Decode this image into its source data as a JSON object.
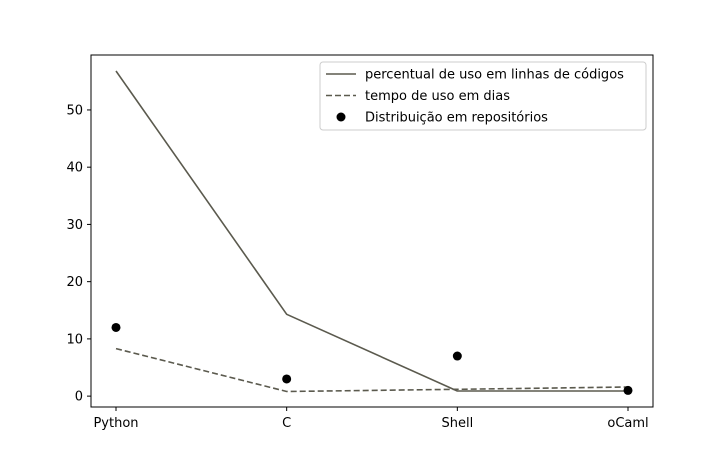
{
  "chart_data": {
    "type": "line",
    "categories": [
      "Python",
      "C",
      "Shell",
      "oCaml"
    ],
    "series": [
      {
        "name": "percentual de uso em linhas de códigos",
        "style": "line",
        "dash": "solid",
        "color": "#5b5a4e",
        "values": [
          56.8,
          14.3,
          0.9,
          0.9
        ]
      },
      {
        "name": "tempo de uso em dias",
        "style": "line",
        "dash": "dashed",
        "color": "#5b5a4e",
        "values": [
          8.3,
          0.8,
          1.2,
          1.6
        ]
      },
      {
        "name": "Distribuição em repositórios",
        "style": "markers",
        "color": "#000000",
        "values": [
          12,
          3,
          7,
          1
        ]
      }
    ],
    "yticks": [
      0,
      10,
      20,
      30,
      40,
      50
    ],
    "ylim": [
      -1.9,
      59.6
    ],
    "title": "",
    "xlabel": "",
    "ylabel": "",
    "grid": false,
    "legend_position": "top-right"
  }
}
